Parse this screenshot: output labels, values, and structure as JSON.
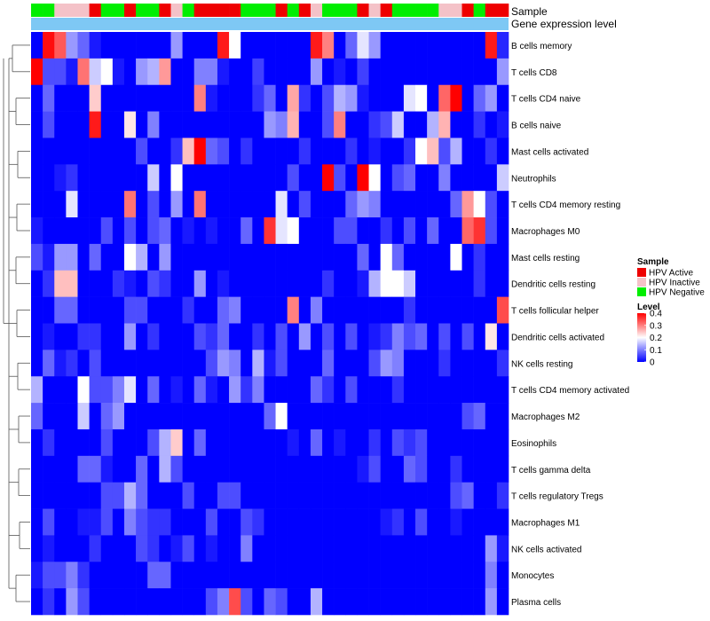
{
  "chart_data": {
    "type": "heatmap",
    "title": "",
    "annotation_tracks": [
      "Sample",
      "Gene expression level"
    ],
    "rows": [
      "B cells memory",
      "T cells CD8",
      "T cells CD4 naive",
      "B cells naive",
      "Mast cells activated",
      "Neutrophils",
      "T cells CD4 memory resting",
      "Macrophages M0",
      "Mast cells resting",
      "Dendritic cells resting",
      "T cells follicular helper",
      "Dendritic cells activated",
      "NK cells resting",
      "T cells CD4 memory activated",
      "Macrophages M2",
      "Eosinophils",
      "T cells gamma delta",
      "T cells regulatory  Tregs",
      "Macrophages M1",
      "NK cells activated",
      "Monocytes",
      "Plasma cells"
    ],
    "sample_groups": [
      "N",
      "N",
      "P",
      "P",
      "P",
      "A",
      "N",
      "N",
      "A",
      "N",
      "N",
      "A",
      "P",
      "N",
      "A",
      "A",
      "A",
      "A",
      "N",
      "N",
      "N",
      "A",
      "N",
      "A",
      "P",
      "N",
      "N",
      "N",
      "A",
      "P",
      "A",
      "N",
      "N",
      "N",
      "N",
      "P",
      "P",
      "A",
      "N",
      "A",
      "A"
    ],
    "legend": {
      "sample_title": "Sample",
      "sample_items": [
        {
          "code": "A",
          "label": "HPV Active",
          "color": "#ee0000"
        },
        {
          "code": "P",
          "label": "HPV Inactive",
          "color": "#f4c2c8"
        },
        {
          "code": "N",
          "label": "HPV Negative",
          "color": "#00ee00"
        }
      ],
      "level_title": "Level",
      "level_ticks": [
        "0.4",
        "0.3",
        "0.2",
        "0.1",
        "0"
      ],
      "level_tick_values": [
        0.4,
        0.3,
        0.2,
        0.1,
        0
      ]
    },
    "color_scale": {
      "min": 0,
      "mid": 0.2,
      "max": 0.4,
      "low": "#0000ff",
      "mid_color": "#ffffff",
      "high": "#ff0000"
    },
    "values": [
      [
        0.0,
        0.39,
        0.33,
        0.12,
        0.08,
        0.02,
        0.0,
        0.0,
        0.0,
        0.0,
        0.0,
        0.0,
        0.12,
        0.0,
        0.0,
        0.0,
        0.38,
        0.2,
        0.0,
        0.0,
        0.0,
        0.0,
        0.0,
        0.0,
        0.38,
        0.3,
        0.0,
        0.08,
        0.18,
        0.12,
        0.0,
        0.0,
        0.0,
        0.0,
        0.0,
        0.0,
        0.0,
        0.0,
        0.0,
        0.38,
        0.03
      ],
      [
        0.4,
        0.06,
        0.06,
        0.02,
        0.31,
        0.16,
        0.2,
        0.02,
        0.0,
        0.12,
        0.14,
        0.28,
        0.0,
        0.0,
        0.1,
        0.1,
        0.02,
        0.0,
        0.0,
        0.05,
        0.0,
        0.0,
        0.0,
        0.0,
        0.12,
        0.0,
        0.02,
        0.0,
        0.05,
        0.0,
        0.0,
        0.0,
        0.0,
        0.0,
        0.0,
        0.0,
        0.0,
        0.0,
        0.0,
        0.0,
        0.12
      ],
      [
        0.0,
        0.08,
        0.0,
        0.0,
        0.0,
        0.24,
        0.0,
        0.0,
        0.0,
        0.0,
        0.0,
        0.0,
        0.0,
        0.0,
        0.3,
        0.02,
        0.0,
        0.0,
        0.0,
        0.04,
        0.08,
        0.0,
        0.27,
        0.04,
        0.0,
        0.06,
        0.14,
        0.12,
        0.02,
        0.0,
        0.0,
        0.0,
        0.18,
        0.2,
        0.0,
        0.32,
        0.4,
        0.0,
        0.08,
        0.12,
        0.0
      ],
      [
        0.0,
        0.06,
        0.0,
        0.0,
        0.0,
        0.38,
        0.0,
        0.0,
        0.22,
        0.0,
        0.1,
        0.0,
        0.0,
        0.0,
        0.0,
        0.0,
        0.0,
        0.0,
        0.0,
        0.0,
        0.12,
        0.1,
        0.26,
        0.0,
        0.0,
        0.06,
        0.3,
        0.0,
        0.0,
        0.04,
        0.06,
        0.16,
        0.0,
        0.0,
        0.14,
        0.26,
        0.0,
        0.0,
        0.04,
        0.0,
        0.02
      ],
      [
        0.0,
        0.0,
        0.0,
        0.0,
        0.0,
        0.0,
        0.0,
        0.0,
        0.0,
        0.06,
        0.0,
        0.0,
        0.04,
        0.25,
        0.4,
        0.08,
        0.06,
        0.0,
        0.04,
        0.0,
        0.0,
        0.0,
        0.0,
        0.04,
        0.0,
        0.0,
        0.0,
        0.04,
        0.0,
        0.02,
        0.0,
        0.0,
        0.04,
        0.2,
        0.25,
        0.06,
        0.14,
        0.0,
        0.0,
        0.04,
        0.0
      ],
      [
        0.0,
        0.0,
        0.02,
        0.04,
        0.0,
        0.0,
        0.0,
        0.0,
        0.0,
        0.0,
        0.16,
        0.0,
        0.2,
        0.0,
        0.0,
        0.0,
        0.0,
        0.0,
        0.0,
        0.0,
        0.0,
        0.0,
        0.06,
        0.0,
        0.0,
        0.4,
        0.06,
        0.0,
        0.4,
        0.2,
        0.0,
        0.06,
        0.08,
        0.0,
        0.0,
        0.1,
        0.0,
        0.0,
        0.0,
        0.0,
        0.16
      ],
      [
        0.0,
        0.0,
        0.0,
        0.18,
        0.0,
        0.0,
        0.0,
        0.0,
        0.31,
        0.0,
        0.06,
        0.0,
        0.12,
        0.0,
        0.31,
        0.0,
        0.0,
        0.0,
        0.0,
        0.0,
        0.0,
        0.18,
        0.0,
        0.06,
        0.0,
        0.0,
        0.0,
        0.08,
        0.12,
        0.1,
        0.0,
        0.0,
        0.0,
        0.0,
        0.0,
        0.0,
        0.08,
        0.28,
        0.2,
        0.06,
        0.0
      ],
      [
        0.02,
        0.0,
        0.0,
        0.0,
        0.0,
        0.0,
        0.06,
        0.0,
        0.06,
        0.0,
        0.06,
        0.08,
        0.0,
        0.02,
        0.0,
        0.02,
        0.0,
        0.0,
        0.08,
        0.0,
        0.36,
        0.18,
        0.2,
        0.0,
        0.0,
        0.0,
        0.06,
        0.06,
        0.0,
        0.0,
        0.04,
        0.0,
        0.06,
        0.0,
        0.08,
        0.0,
        0.0,
        0.32,
        0.36,
        0.06,
        0.0
      ],
      [
        0.06,
        0.02,
        0.12,
        0.12,
        0.0,
        0.08,
        0.0,
        0.0,
        0.2,
        0.14,
        0.0,
        0.12,
        0.0,
        0.0,
        0.0,
        0.0,
        0.0,
        0.0,
        0.0,
        0.0,
        0.0,
        0.0,
        0.0,
        0.0,
        0.0,
        0.0,
        0.0,
        0.0,
        0.08,
        0.0,
        0.2,
        0.08,
        0.0,
        0.0,
        0.0,
        0.0,
        0.2,
        0.0,
        0.04,
        0.0,
        0.0
      ],
      [
        0.0,
        0.04,
        0.25,
        0.25,
        0.0,
        0.0,
        0.0,
        0.04,
        0.02,
        0.0,
        0.06,
        0.04,
        0.0,
        0.0,
        0.12,
        0.0,
        0.02,
        0.0,
        0.0,
        0.0,
        0.0,
        0.0,
        0.0,
        0.0,
        0.0,
        0.04,
        0.0,
        0.0,
        0.02,
        0.14,
        0.2,
        0.2,
        0.16,
        0.0,
        0.0,
        0.0,
        0.0,
        0.0,
        0.04,
        0.0,
        0.0
      ],
      [
        0.0,
        0.0,
        0.08,
        0.08,
        0.0,
        0.0,
        0.0,
        0.0,
        0.06,
        0.06,
        0.0,
        0.0,
        0.0,
        0.04,
        0.0,
        0.0,
        0.08,
        0.1,
        0.0,
        0.0,
        0.0,
        0.0,
        0.3,
        0.0,
        0.1,
        0.0,
        0.0,
        0.0,
        0.0,
        0.0,
        0.0,
        0.0,
        0.04,
        0.0,
        0.0,
        0.0,
        0.0,
        0.0,
        0.0,
        0.0,
        0.34
      ],
      [
        0.0,
        0.02,
        0.0,
        0.0,
        0.04,
        0.04,
        0.0,
        0.0,
        0.12,
        0.0,
        0.04,
        0.0,
        0.0,
        0.0,
        0.06,
        0.04,
        0.08,
        0.0,
        0.0,
        0.04,
        0.0,
        0.06,
        0.0,
        0.12,
        0.0,
        0.06,
        0.0,
        0.06,
        0.0,
        0.02,
        0.04,
        0.1,
        0.06,
        0.08,
        0.0,
        0.06,
        0.0,
        0.06,
        0.0,
        0.22,
        0.0
      ],
      [
        0.0,
        0.08,
        0.02,
        0.04,
        0.0,
        0.06,
        0.0,
        0.0,
        0.0,
        0.0,
        0.0,
        0.0,
        0.0,
        0.0,
        0.0,
        0.06,
        0.12,
        0.1,
        0.0,
        0.14,
        0.02,
        0.06,
        0.0,
        0.0,
        0.0,
        0.08,
        0.0,
        0.0,
        0.0,
        0.06,
        0.12,
        0.1,
        0.0,
        0.0,
        0.0,
        0.04,
        0.0,
        0.0,
        0.0,
        0.0,
        0.04
      ],
      [
        0.14,
        0.0,
        0.0,
        0.0,
        0.2,
        0.06,
        0.06,
        0.1,
        0.18,
        0.0,
        0.08,
        0.0,
        0.02,
        0.0,
        0.08,
        0.02,
        0.0,
        0.12,
        0.04,
        0.1,
        0.0,
        0.0,
        0.0,
        0.0,
        0.08,
        0.04,
        0.0,
        0.06,
        0.0,
        0.0,
        0.0,
        0.04,
        0.0,
        0.0,
        0.0,
        0.0,
        0.0,
        0.0,
        0.0,
        0.0,
        0.0
      ],
      [
        0.08,
        0.0,
        0.0,
        0.0,
        0.16,
        0.0,
        0.08,
        0.12,
        0.0,
        0.0,
        0.0,
        0.0,
        0.0,
        0.0,
        0.0,
        0.0,
        0.0,
        0.0,
        0.0,
        0.0,
        0.08,
        0.2,
        0.0,
        0.0,
        0.0,
        0.0,
        0.0,
        0.0,
        0.0,
        0.0,
        0.0,
        0.0,
        0.0,
        0.0,
        0.0,
        0.0,
        0.0,
        0.06,
        0.08,
        0.0,
        0.0
      ],
      [
        0.0,
        0.04,
        0.0,
        0.0,
        0.0,
        0.0,
        0.06,
        0.0,
        0.0,
        0.0,
        0.06,
        0.14,
        0.24,
        0.0,
        0.08,
        0.0,
        0.0,
        0.0,
        0.0,
        0.0,
        0.0,
        0.0,
        0.02,
        0.0,
        0.08,
        0.0,
        0.02,
        0.0,
        0.0,
        0.04,
        0.0,
        0.06,
        0.04,
        0.06,
        0.0,
        0.0,
        0.0,
        0.0,
        0.0,
        0.0,
        0.0
      ],
      [
        0.0,
        0.0,
        0.0,
        0.0,
        0.08,
        0.08,
        0.02,
        0.0,
        0.0,
        0.08,
        0.0,
        0.14,
        0.06,
        0.0,
        0.0,
        0.0,
        0.0,
        0.0,
        0.0,
        0.0,
        0.0,
        0.0,
        0.0,
        0.0,
        0.0,
        0.0,
        0.0,
        0.0,
        0.02,
        0.06,
        0.0,
        0.0,
        0.08,
        0.06,
        0.0,
        0.0,
        0.04,
        0.0,
        0.0,
        0.0,
        0.0
      ],
      [
        0.0,
        0.0,
        0.0,
        0.0,
        0.0,
        0.0,
        0.06,
        0.06,
        0.14,
        0.08,
        0.0,
        0.0,
        0.0,
        0.06,
        0.0,
        0.0,
        0.06,
        0.06,
        0.0,
        0.0,
        0.0,
        0.0,
        0.0,
        0.0,
        0.0,
        0.0,
        0.0,
        0.0,
        0.0,
        0.0,
        0.0,
        0.0,
        0.0,
        0.0,
        0.0,
        0.0,
        0.06,
        0.08,
        0.0,
        0.0,
        0.04
      ],
      [
        0.0,
        0.06,
        0.0,
        0.0,
        0.02,
        0.02,
        0.06,
        0.0,
        0.1,
        0.06,
        0.04,
        0.04,
        0.0,
        0.0,
        0.0,
        0.06,
        0.0,
        0.0,
        0.06,
        0.04,
        0.0,
        0.0,
        0.0,
        0.0,
        0.0,
        0.0,
        0.0,
        0.0,
        0.0,
        0.0,
        0.02,
        0.04,
        0.0,
        0.06,
        0.0,
        0.0,
        0.02,
        0.0,
        0.0,
        0.0,
        0.0
      ],
      [
        0.0,
        0.02,
        0.0,
        0.0,
        0.0,
        0.04,
        0.0,
        0.0,
        0.0,
        0.06,
        0.04,
        0.0,
        0.02,
        0.06,
        0.0,
        0.02,
        0.0,
        0.0,
        0.1,
        0.0,
        0.0,
        0.0,
        0.0,
        0.0,
        0.0,
        0.0,
        0.0,
        0.0,
        0.0,
        0.0,
        0.0,
        0.0,
        0.0,
        0.0,
        0.0,
        0.0,
        0.0,
        0.0,
        0.0,
        0.12,
        0.02
      ],
      [
        0.02,
        0.06,
        0.06,
        0.1,
        0.04,
        0.0,
        0.0,
        0.0,
        0.0,
        0.0,
        0.08,
        0.08,
        0.0,
        0.0,
        0.0,
        0.0,
        0.0,
        0.0,
        0.0,
        0.0,
        0.0,
        0.0,
        0.0,
        0.0,
        0.0,
        0.0,
        0.0,
        0.0,
        0.0,
        0.0,
        0.0,
        0.0,
        0.0,
        0.0,
        0.0,
        0.0,
        0.0,
        0.0,
        0.0,
        0.1,
        0.0
      ],
      [
        0.0,
        0.04,
        0.0,
        0.12,
        0.06,
        0.0,
        0.0,
        0.0,
        0.0,
        0.0,
        0.0,
        0.0,
        0.0,
        0.0,
        0.0,
        0.06,
        0.1,
        0.34,
        0.06,
        0.0,
        0.08,
        0.06,
        0.0,
        0.0,
        0.14,
        0.0,
        0.0,
        0.0,
        0.0,
        0.0,
        0.0,
        0.0,
        0.0,
        0.0,
        0.0,
        0.0,
        0.0,
        0.0,
        0.0,
        0.12,
        0.0
      ]
    ]
  }
}
